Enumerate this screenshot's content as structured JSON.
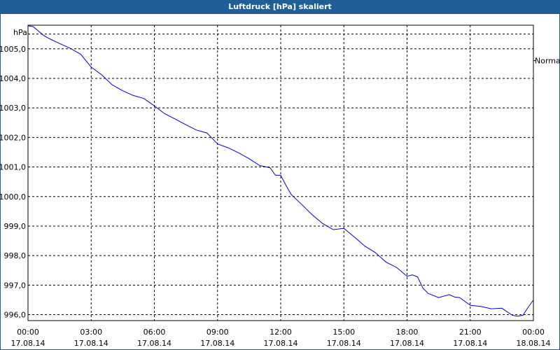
{
  "window": {
    "title": "Luftdruck [hPa] skaliert"
  },
  "chart_data": {
    "type": "line",
    "ylabel": "hPa",
    "ylim": [
      995.8,
      1005.8
    ],
    "y_ticks": [
      {
        "value": 996.0,
        "label": "996,0"
      },
      {
        "value": 997.0,
        "label": "997,0"
      },
      {
        "value": 998.0,
        "label": "998,0"
      },
      {
        "value": 999.0,
        "label": "999,0"
      },
      {
        "value": 1000.0,
        "label": "1000,0"
      },
      {
        "value": 1001.0,
        "label": "1001,0"
      },
      {
        "value": 1002.0,
        "label": "1002,0"
      },
      {
        "value": 1003.0,
        "label": "1003,0"
      },
      {
        "value": 1004.0,
        "label": "1004,0"
      },
      {
        "value": 1005.0,
        "label": "1005,0"
      }
    ],
    "x_ticks": [
      {
        "value": 0,
        "time": "00:00",
        "date": "17.08.14"
      },
      {
        "value": 3,
        "time": "03:00",
        "date": "17.08.14"
      },
      {
        "value": 6,
        "time": "06:00",
        "date": "17.08.14"
      },
      {
        "value": 9,
        "time": "09:00",
        "date": "17.08.14"
      },
      {
        "value": 12,
        "time": "12:00",
        "date": "17.08.14"
      },
      {
        "value": 15,
        "time": "15:00",
        "date": "17.08.14"
      },
      {
        "value": 18,
        "time": "18:00",
        "date": "17.08.14"
      },
      {
        "value": 21,
        "time": "21:00",
        "date": "17.08.14"
      },
      {
        "value": 24,
        "time": "00:00",
        "date": "18.08.14"
      }
    ],
    "xlim": [
      0,
      24
    ],
    "grid": true,
    "reference": {
      "label": "Normal",
      "value": 1004.6
    },
    "series": [
      {
        "color": "#0000cc",
        "x": [
          0,
          0.25,
          0.5,
          0.75,
          1,
          1.5,
          2,
          2.5,
          3,
          3.5,
          4,
          4.5,
          5,
          5.5,
          6,
          6.5,
          7,
          7.5,
          8,
          8.5,
          9,
          9.5,
          10,
          10.5,
          11,
          11.5,
          11.75,
          12,
          12.25,
          12.5,
          13,
          13.5,
          14,
          14.5,
          15,
          15.5,
          16,
          16.5,
          17,
          17.5,
          18,
          18.25,
          18.5,
          18.75,
          19,
          19.5,
          20,
          20.25,
          20.5,
          21,
          21.5,
          22,
          22.5,
          23,
          23.25,
          23.5,
          23.75,
          24
        ],
        "values": [
          1005.78,
          1005.75,
          1005.6,
          1005.45,
          1005.35,
          1005.18,
          1005.02,
          1004.82,
          1004.38,
          1004.12,
          1003.78,
          1003.58,
          1003.42,
          1003.32,
          1003.07,
          1002.8,
          1002.62,
          1002.43,
          1002.25,
          1002.15,
          1001.78,
          1001.65,
          1001.48,
          1001.28,
          1001.05,
          1000.97,
          1000.72,
          1000.72,
          1000.38,
          1000.07,
          999.73,
          999.38,
          999.08,
          998.88,
          998.92,
          998.63,
          998.32,
          998.1,
          997.78,
          997.6,
          997.3,
          997.35,
          997.28,
          996.9,
          996.72,
          996.58,
          996.68,
          996.6,
          996.58,
          996.32,
          996.28,
          996.2,
          996.22,
          995.98,
          995.95,
          995.98,
          996.25,
          996.5
        ]
      }
    ]
  }
}
